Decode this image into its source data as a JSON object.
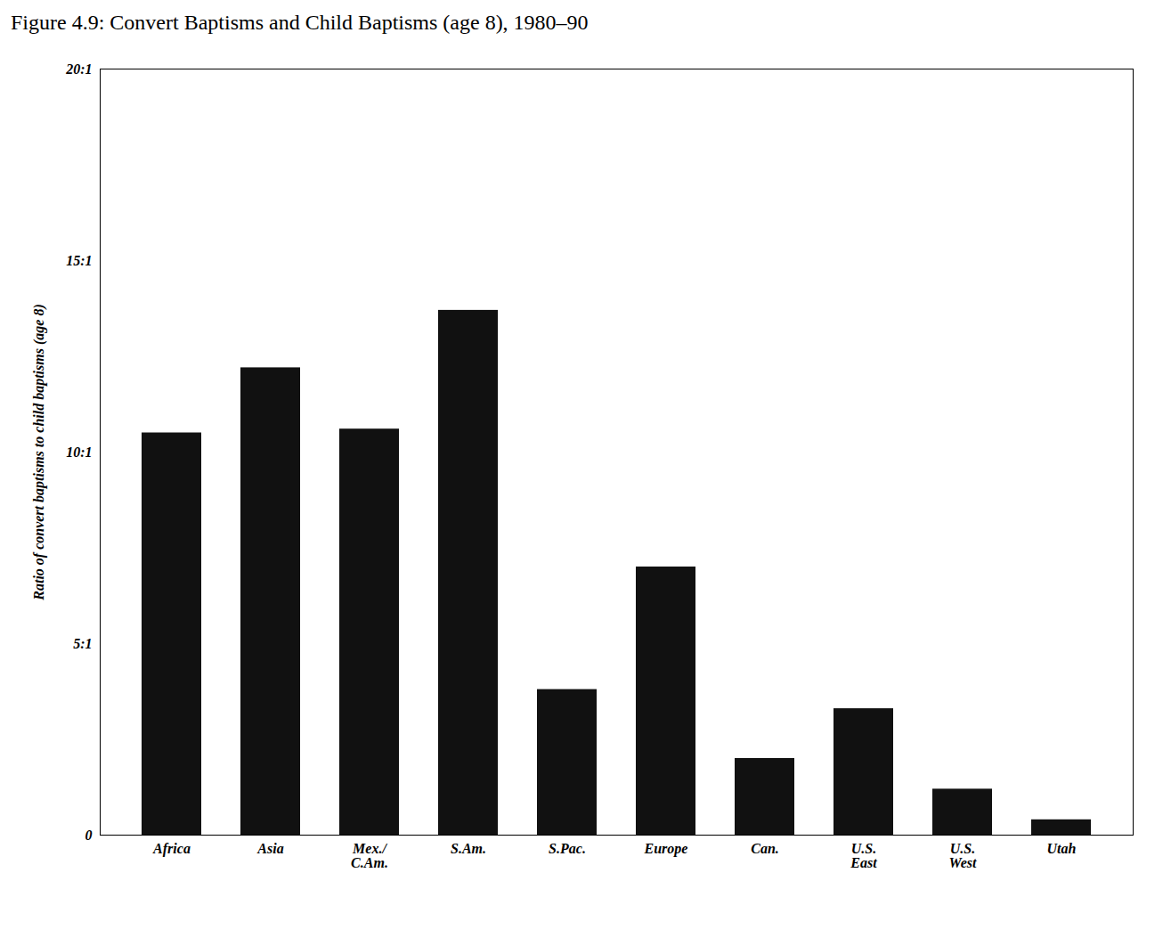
{
  "chart_data": {
    "type": "bar",
    "title": "Figure 4.9: Convert Baptisms and Child Baptisms (age 8), 1980–90",
    "ylabel": "Ratio of convert baptisms to child baptisms (age 8)",
    "categories": [
      "Africa",
      "Asia",
      "Mex./\nC.Am.",
      "S.Am.",
      "S.Pac.",
      "Europe",
      "Can.",
      "U.S.\nEast",
      "U.S.\nWest",
      "Utah"
    ],
    "values": [
      10.5,
      12.2,
      10.6,
      13.7,
      3.8,
      7.0,
      2.0,
      3.3,
      1.2,
      0.4
    ],
    "color": "#111111",
    "ylim": [
      0,
      20
    ],
    "yticks": [
      0,
      {
        "value": 5,
        "label": "5:1"
      },
      {
        "value": 10,
        "label": "10:1"
      },
      {
        "value": 15,
        "label": "15:1"
      },
      {
        "value": 20,
        "label": "20:1"
      }
    ],
    "grid": false
  }
}
